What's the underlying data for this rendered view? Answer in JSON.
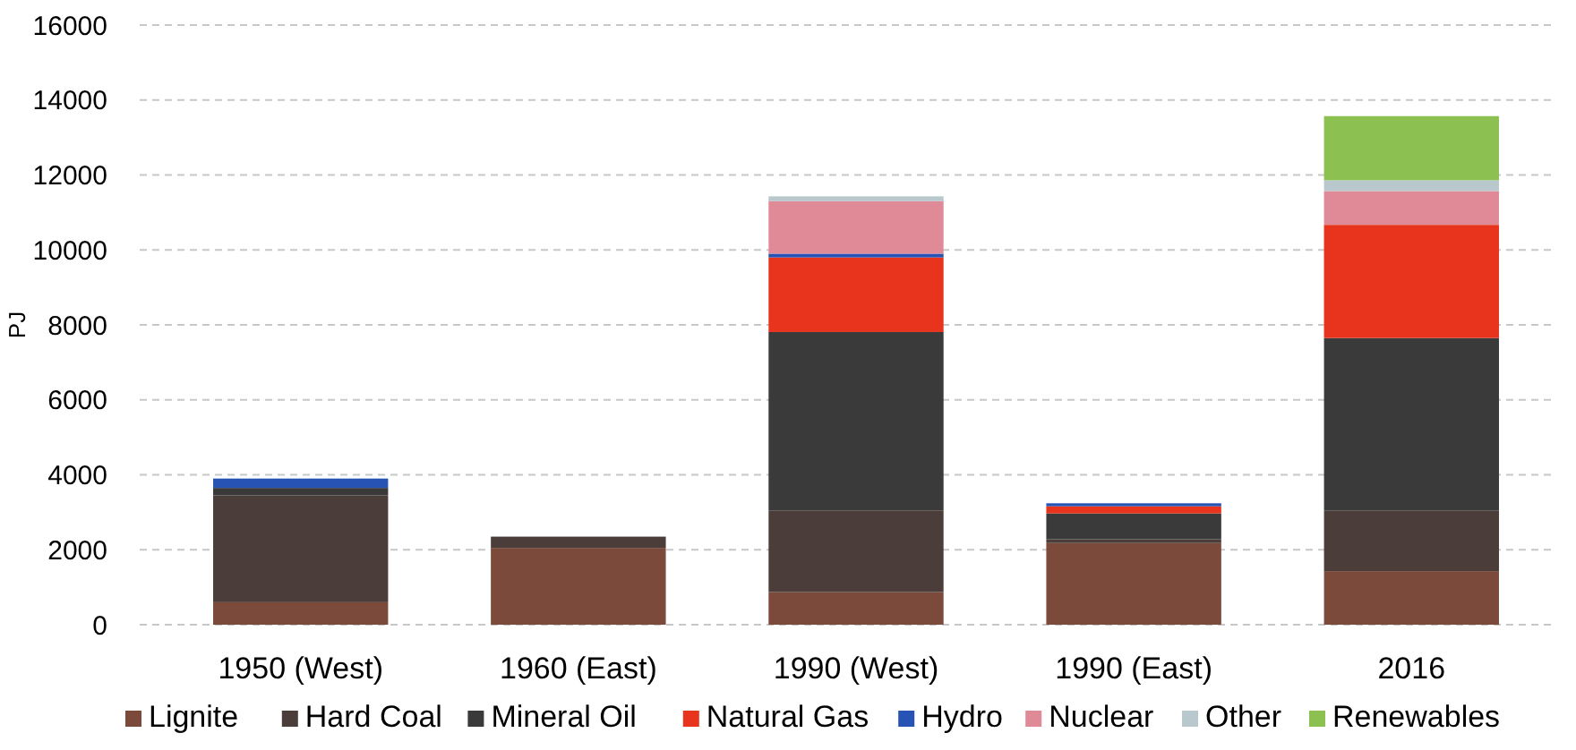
{
  "chart_data": {
    "type": "bar",
    "stacked": true,
    "ylabel": "PJ",
    "categories": [
      "1950 (West)",
      "1960 (East)",
      "1990 (West)",
      "1990 (East)",
      "2016"
    ],
    "series": [
      {
        "name": "Lignite",
        "color": "#7b4a3a",
        "values": [
          600,
          2050,
          870,
          2180,
          1430
        ]
      },
      {
        "name": "Hard Coal",
        "color": "#4a3d3a",
        "values": [
          2850,
          300,
          2180,
          100,
          1620
        ]
      },
      {
        "name": "Mineral Oil",
        "color": "#3a3a3a",
        "values": [
          200,
          null,
          4760,
          690,
          4600
        ]
      },
      {
        "name": "Natural Gas",
        "color": "#e8341c",
        "values": [
          null,
          null,
          1990,
          190,
          3020
        ]
      },
      {
        "name": "Hydro",
        "color": "#2753b5",
        "values": [
          250,
          null,
          100,
          80,
          null
        ]
      },
      {
        "name": "Nuclear",
        "color": "#e08a98",
        "values": [
          null,
          null,
          1400,
          null,
          900
        ]
      },
      {
        "name": "Other",
        "color": "#b8c8cc",
        "values": [
          null,
          null,
          130,
          null,
          290
        ]
      },
      {
        "name": "Renewables",
        "color": "#8cc152",
        "values": [
          null,
          null,
          null,
          null,
          1710
        ]
      }
    ],
    "ylim": [
      0,
      16000
    ],
    "yticks": [
      0,
      2000,
      4000,
      6000,
      8000,
      10000,
      12000,
      14000,
      16000
    ],
    "grid": "y",
    "legend": "bottom"
  }
}
